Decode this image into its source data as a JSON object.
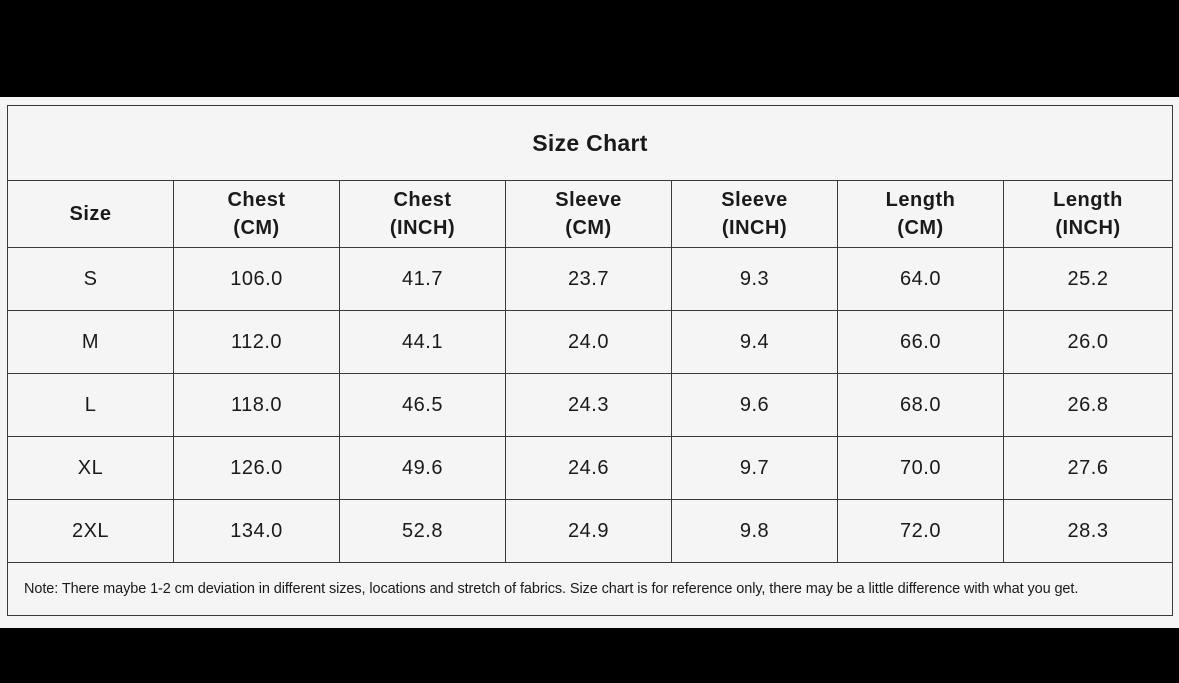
{
  "title": "Size Chart",
  "headers": [
    {
      "line1": "Size",
      "line2": ""
    },
    {
      "line1": "Chest",
      "line2": "(CM)"
    },
    {
      "line1": "Chest",
      "line2": "(INCH)"
    },
    {
      "line1": "Sleeve",
      "line2": "(CM)"
    },
    {
      "line1": "Sleeve",
      "line2": "(INCH)"
    },
    {
      "line1": "Length",
      "line2": "(CM)"
    },
    {
      "line1": "Length",
      "line2": "(INCH)"
    }
  ],
  "rows": [
    [
      "S",
      "106.0",
      "41.7",
      "23.7",
      "9.3",
      "64.0",
      "25.2"
    ],
    [
      "M",
      "112.0",
      "44.1",
      "24.0",
      "9.4",
      "66.0",
      "26.0"
    ],
    [
      "L",
      "118.0",
      "46.5",
      "24.3",
      "9.6",
      "68.0",
      "26.8"
    ],
    [
      "XL",
      "126.0",
      "49.6",
      "24.6",
      "9.7",
      "70.0",
      "27.6"
    ],
    [
      "2XL",
      "134.0",
      "52.8",
      "24.9",
      "9.8",
      "72.0",
      "28.3"
    ]
  ],
  "note": "Note: There maybe 1-2 cm deviation in different sizes, locations and stretch of fabrics. Size chart is for reference only, there may be a little difference with what you get."
}
